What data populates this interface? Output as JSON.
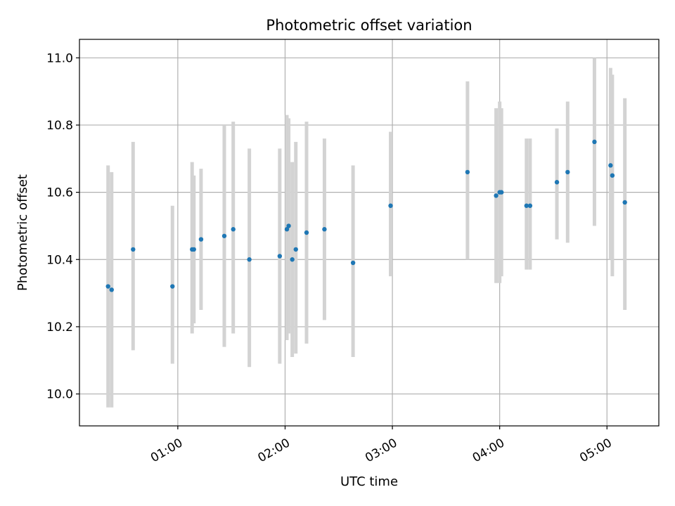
{
  "chart_data": {
    "type": "scatter",
    "title": "Photometric offset variation",
    "xlabel": "UTC time",
    "ylabel": "Photometric offset",
    "xlim": [
      "00:05",
      "05:29"
    ],
    "ylim": [
      9.905,
      11.055
    ],
    "grid": true,
    "x_ticks": [
      "01:00",
      "02:00",
      "03:00",
      "04:00",
      "05:00"
    ],
    "y_ticks": [
      "10.0",
      "10.2",
      "10.4",
      "10.6",
      "10.8",
      "11.0"
    ],
    "marker_color": "#1f77b4",
    "errorbar_color": "#d3d3d3",
    "points": [
      {
        "x": "00:21",
        "y": 10.32,
        "err_low": 9.96,
        "err_high": 10.68
      },
      {
        "x": "00:23",
        "y": 10.31,
        "err_low": 9.96,
        "err_high": 10.66
      },
      {
        "x": "00:35",
        "y": 10.43,
        "err_low": 10.13,
        "err_high": 10.75
      },
      {
        "x": "00:57",
        "y": 10.32,
        "err_low": 10.09,
        "err_high": 10.56
      },
      {
        "x": "01:08",
        "y": 10.43,
        "err_low": 10.18,
        "err_high": 10.69
      },
      {
        "x": "01:09",
        "y": 10.43,
        "err_low": 10.21,
        "err_high": 10.65
      },
      {
        "x": "01:13",
        "y": 10.46,
        "err_low": 10.25,
        "err_high": 10.67
      },
      {
        "x": "01:26",
        "y": 10.47,
        "err_low": 10.14,
        "err_high": 10.8
      },
      {
        "x": "01:31",
        "y": 10.49,
        "err_low": 10.18,
        "err_high": 10.81
      },
      {
        "x": "01:40",
        "y": 10.4,
        "err_low": 10.08,
        "err_high": 10.73
      },
      {
        "x": "01:57",
        "y": 10.41,
        "err_low": 10.09,
        "err_high": 10.73
      },
      {
        "x": "02:01",
        "y": 10.49,
        "err_low": 10.16,
        "err_high": 10.83
      },
      {
        "x": "02:02",
        "y": 10.5,
        "err_low": 10.18,
        "err_high": 10.82
      },
      {
        "x": "02:04",
        "y": 10.4,
        "err_low": 10.11,
        "err_high": 10.69
      },
      {
        "x": "02:06",
        "y": 10.43,
        "err_low": 10.12,
        "err_high": 10.75
      },
      {
        "x": "02:12",
        "y": 10.48,
        "err_low": 10.15,
        "err_high": 10.81
      },
      {
        "x": "02:22",
        "y": 10.49,
        "err_low": 10.22,
        "err_high": 10.76
      },
      {
        "x": "02:38",
        "y": 10.39,
        "err_low": 10.11,
        "err_high": 10.68
      },
      {
        "x": "02:59",
        "y": 10.56,
        "err_low": 10.35,
        "err_high": 10.78
      },
      {
        "x": "03:42",
        "y": 10.66,
        "err_low": 10.4,
        "err_high": 10.93
      },
      {
        "x": "03:58",
        "y": 10.59,
        "err_low": 10.33,
        "err_high": 10.85
      },
      {
        "x": "04:00",
        "y": 10.6,
        "err_low": 10.33,
        "err_high": 10.87
      },
      {
        "x": "04:01",
        "y": 10.6,
        "err_low": 10.35,
        "err_high": 10.85
      },
      {
        "x": "04:15",
        "y": 10.56,
        "err_low": 10.37,
        "err_high": 10.76
      },
      {
        "x": "04:17",
        "y": 10.56,
        "err_low": 10.37,
        "err_high": 10.76
      },
      {
        "x": "04:32",
        "y": 10.63,
        "err_low": 10.46,
        "err_high": 10.79
      },
      {
        "x": "04:38",
        "y": 10.66,
        "err_low": 10.45,
        "err_high": 10.87
      },
      {
        "x": "04:53",
        "y": 10.75,
        "err_low": 10.5,
        "err_high": 11.0
      },
      {
        "x": "05:02",
        "y": 10.68,
        "err_low": 10.4,
        "err_high": 10.97
      },
      {
        "x": "05:03",
        "y": 10.65,
        "err_low": 10.35,
        "err_high": 10.95
      },
      {
        "x": "05:10",
        "y": 10.57,
        "err_low": 10.25,
        "err_high": 10.88
      }
    ]
  }
}
